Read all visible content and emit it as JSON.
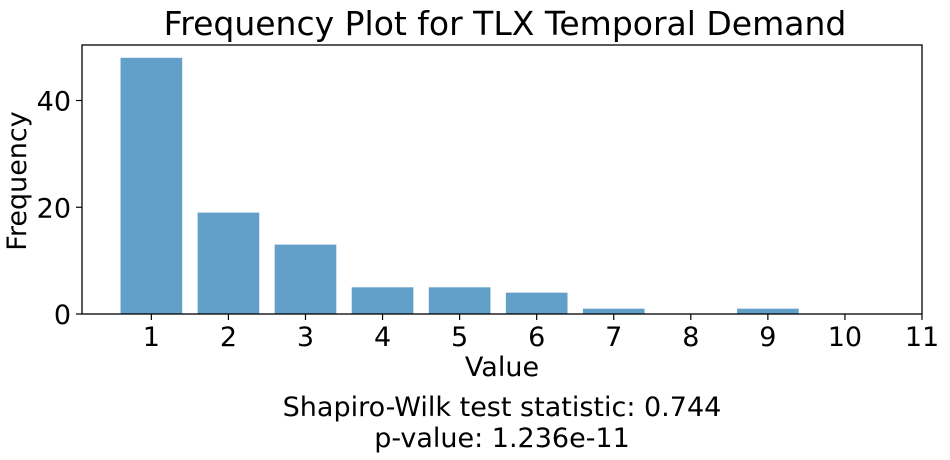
{
  "chart_data": {
    "type": "bar",
    "title": "Frequency Plot for TLX Temporal Demand",
    "xlabel": "Value",
    "ylabel": "Frequency",
    "categories": [
      1,
      2,
      3,
      4,
      5,
      6,
      7,
      8,
      9,
      10
    ],
    "values": [
      48,
      19,
      13,
      5,
      5,
      4,
      1,
      0,
      1,
      0
    ],
    "x_ticks": [
      "1",
      "2",
      "3",
      "4",
      "5",
      "6",
      "7",
      "8",
      "9",
      "10",
      "11"
    ],
    "y_ticks": [
      "0",
      "20",
      "40"
    ],
    "xlim": [
      0.1,
      11
    ],
    "ylim": [
      0,
      50.4
    ],
    "grid": false,
    "bar_color": "#62a0ca",
    "annotations": [
      "Shapiro-Wilk test statistic: 0.744",
      "p-value: 1.236e-11"
    ]
  }
}
